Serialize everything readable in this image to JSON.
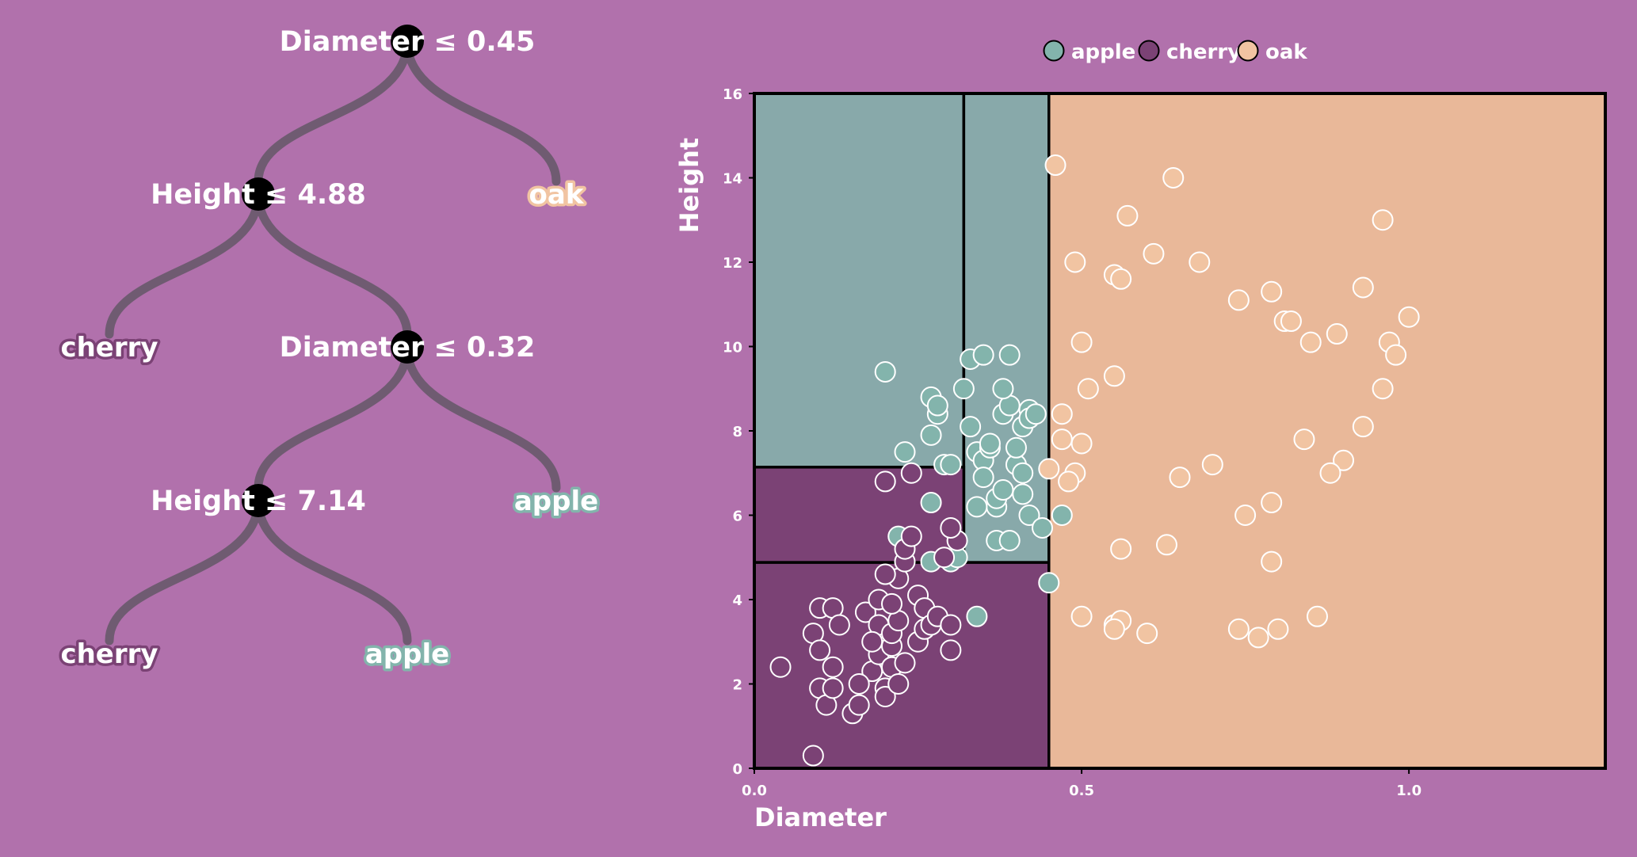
{
  "colors": {
    "background": "#b171ac",
    "apple": "#88a9aa",
    "cherry": "#7b4275",
    "oak": "#e9b899",
    "apple_point": "#83b4ac",
    "cherry_point": "#7b4275",
    "oak_point": "#f1c4a2",
    "branch": "#6f5b71",
    "node": "#000000",
    "text": "#ffffff"
  },
  "tree": {
    "nodes": [
      {
        "id": "n0",
        "label": "Diameter ≤ 0.45",
        "children": [
          "n1",
          "l_oak"
        ]
      },
      {
        "id": "n1",
        "label": "Height ≤ 4.88",
        "children": [
          "l_cherry_1",
          "n2"
        ]
      },
      {
        "id": "n2",
        "label": "Diameter ≤ 0.32",
        "children": [
          "n3",
          "l_apple_1"
        ]
      },
      {
        "id": "n3",
        "label": "Height ≤ 7.14",
        "children": [
          "l_cherry_2",
          "l_apple_2"
        ]
      }
    ],
    "leaves": [
      {
        "id": "l_oak",
        "label": "oak",
        "class": "oak"
      },
      {
        "id": "l_cherry_1",
        "label": "cherry",
        "class": "cherry"
      },
      {
        "id": "l_apple_1",
        "label": "apple",
        "class": "apple"
      },
      {
        "id": "l_cherry_2",
        "label": "cherry",
        "class": "cherry"
      },
      {
        "id": "l_apple_2",
        "label": "apple",
        "class": "apple"
      }
    ]
  },
  "legend": [
    {
      "label": "apple",
      "class": "apple"
    },
    {
      "label": "cherry",
      "class": "cherry"
    },
    {
      "label": "oak",
      "class": "oak"
    }
  ],
  "chart_data": {
    "type": "scatter",
    "xlabel": "Diameter",
    "ylabel": "Height",
    "xlim": [
      0,
      1.3
    ],
    "ylim": [
      0,
      16
    ],
    "xticks": [
      0.0,
      0.5,
      1.0
    ],
    "yticks": [
      0,
      2,
      4,
      6,
      8,
      10,
      12,
      14,
      16
    ],
    "grid": false,
    "legend_position": "top",
    "regions": [
      {
        "class": "apple",
        "x": [
          0,
          0.32
        ],
        "y": [
          7.14,
          16
        ]
      },
      {
        "class": "apple",
        "x": [
          0.32,
          0.45
        ],
        "y": [
          4.88,
          16
        ]
      },
      {
        "class": "cherry",
        "x": [
          0,
          0.32
        ],
        "y": [
          4.88,
          7.14
        ]
      },
      {
        "class": "cherry",
        "x": [
          0,
          0.45
        ],
        "y": [
          0,
          4.88
        ]
      },
      {
        "class": "oak",
        "x": [
          0.45,
          1.3
        ],
        "y": [
          0,
          16
        ]
      }
    ],
    "series": [
      {
        "name": "apple",
        "points": [
          [
            0.2,
            9.4
          ],
          [
            0.27,
            7.9
          ],
          [
            0.27,
            8.8
          ],
          [
            0.28,
            8.4
          ],
          [
            0.28,
            8.6
          ],
          [
            0.29,
            7.2
          ],
          [
            0.3,
            7.2
          ],
          [
            0.32,
            9.0
          ],
          [
            0.33,
            8.1
          ],
          [
            0.33,
            9.7
          ],
          [
            0.34,
            7.5
          ],
          [
            0.35,
            9.8
          ],
          [
            0.35,
            7.3
          ],
          [
            0.35,
            6.9
          ],
          [
            0.36,
            7.6
          ],
          [
            0.36,
            7.7
          ],
          [
            0.37,
            6.2
          ],
          [
            0.37,
            6.4
          ],
          [
            0.38,
            8.4
          ],
          [
            0.38,
            6.6
          ],
          [
            0.39,
            9.8
          ],
          [
            0.39,
            8.6
          ],
          [
            0.38,
            9.0
          ],
          [
            0.4,
            7.2
          ],
          [
            0.4,
            7.6
          ],
          [
            0.41,
            7.0
          ],
          [
            0.41,
            8.1
          ],
          [
            0.42,
            8.5
          ],
          [
            0.42,
            8.3
          ],
          [
            0.43,
            8.4
          ],
          [
            0.42,
            6.0
          ],
          [
            0.41,
            6.5
          ],
          [
            0.44,
            5.7
          ],
          [
            0.45,
            4.4
          ],
          [
            0.47,
            6.0
          ],
          [
            0.34,
            3.6
          ],
          [
            0.27,
            6.3
          ],
          [
            0.23,
            7.5
          ],
          [
            0.22,
            5.5
          ],
          [
            0.27,
            4.9
          ],
          [
            0.3,
            4.9
          ],
          [
            0.31,
            5.0
          ],
          [
            0.34,
            6.2
          ],
          [
            0.37,
            5.4
          ],
          [
            0.39,
            5.4
          ]
        ]
      },
      {
        "name": "cherry",
        "points": [
          [
            0.04,
            2.4
          ],
          [
            0.09,
            0.3
          ],
          [
            0.09,
            3.2
          ],
          [
            0.1,
            1.9
          ],
          [
            0.1,
            2.8
          ],
          [
            0.1,
            3.8
          ],
          [
            0.11,
            1.5
          ],
          [
            0.12,
            3.8
          ],
          [
            0.12,
            2.4
          ],
          [
            0.12,
            1.9
          ],
          [
            0.13,
            3.4
          ],
          [
            0.15,
            1.3
          ],
          [
            0.16,
            1.5
          ],
          [
            0.17,
            3.7
          ],
          [
            0.18,
            2.3
          ],
          [
            0.19,
            2.7
          ],
          [
            0.19,
            4.0
          ],
          [
            0.19,
            3.4
          ],
          [
            0.2,
            1.9
          ],
          [
            0.2,
            1.7
          ],
          [
            0.21,
            2.4
          ],
          [
            0.21,
            2.9
          ],
          [
            0.21,
            3.2
          ],
          [
            0.22,
            3.5
          ],
          [
            0.22,
            4.5
          ],
          [
            0.22,
            2.0
          ],
          [
            0.23,
            2.5
          ],
          [
            0.23,
            4.9
          ],
          [
            0.23,
            5.2
          ],
          [
            0.24,
            5.5
          ],
          [
            0.25,
            3.0
          ],
          [
            0.25,
            4.1
          ],
          [
            0.26,
            3.3
          ],
          [
            0.26,
            3.8
          ],
          [
            0.27,
            3.4
          ],
          [
            0.28,
            3.6
          ],
          [
            0.29,
            5.0
          ],
          [
            0.3,
            3.4
          ],
          [
            0.3,
            2.8
          ],
          [
            0.31,
            5.4
          ],
          [
            0.3,
            5.7
          ],
          [
            0.2,
            6.8
          ],
          [
            0.24,
            7.0
          ],
          [
            0.2,
            4.6
          ],
          [
            0.16,
            2.0
          ],
          [
            0.18,
            3.0
          ],
          [
            0.21,
            3.9
          ]
        ]
      },
      {
        "name": "oak",
        "points": [
          [
            0.46,
            14.3
          ],
          [
            0.49,
            12.0
          ],
          [
            0.5,
            10.1
          ],
          [
            0.51,
            9.0
          ],
          [
            0.55,
            11.7
          ],
          [
            0.55,
            9.3
          ],
          [
            0.56,
            11.6
          ],
          [
            0.57,
            13.1
          ],
          [
            0.61,
            12.2
          ],
          [
            0.64,
            14.0
          ],
          [
            0.68,
            12.0
          ],
          [
            0.74,
            11.1
          ],
          [
            0.79,
            11.3
          ],
          [
            0.81,
            10.6
          ],
          [
            0.82,
            10.6
          ],
          [
            0.85,
            10.1
          ],
          [
            0.89,
            10.3
          ],
          [
            0.93,
            11.4
          ],
          [
            0.96,
            13.0
          ],
          [
            0.97,
            10.1
          ],
          [
            0.98,
            9.8
          ],
          [
            1.0,
            10.7
          ],
          [
            0.96,
            9.0
          ],
          [
            0.93,
            8.1
          ],
          [
            0.9,
            7.3
          ],
          [
            0.88,
            7.0
          ],
          [
            0.84,
            7.8
          ],
          [
            0.79,
            6.3
          ],
          [
            0.75,
            6.0
          ],
          [
            0.7,
            7.2
          ],
          [
            0.65,
            6.9
          ],
          [
            0.63,
            5.3
          ],
          [
            0.56,
            5.2
          ],
          [
            0.5,
            7.7
          ],
          [
            0.49,
            7.0
          ],
          [
            0.48,
            6.8
          ],
          [
            0.47,
            7.8
          ],
          [
            0.47,
            8.4
          ],
          [
            0.45,
            7.1
          ],
          [
            0.5,
            3.6
          ],
          [
            0.55,
            3.4
          ],
          [
            0.56,
            3.5
          ],
          [
            0.6,
            3.2
          ],
          [
            0.74,
            3.3
          ],
          [
            0.77,
            3.1
          ],
          [
            0.8,
            3.3
          ],
          [
            0.86,
            3.6
          ],
          [
            0.79,
            4.9
          ],
          [
            0.55,
            3.3
          ]
        ]
      }
    ]
  }
}
